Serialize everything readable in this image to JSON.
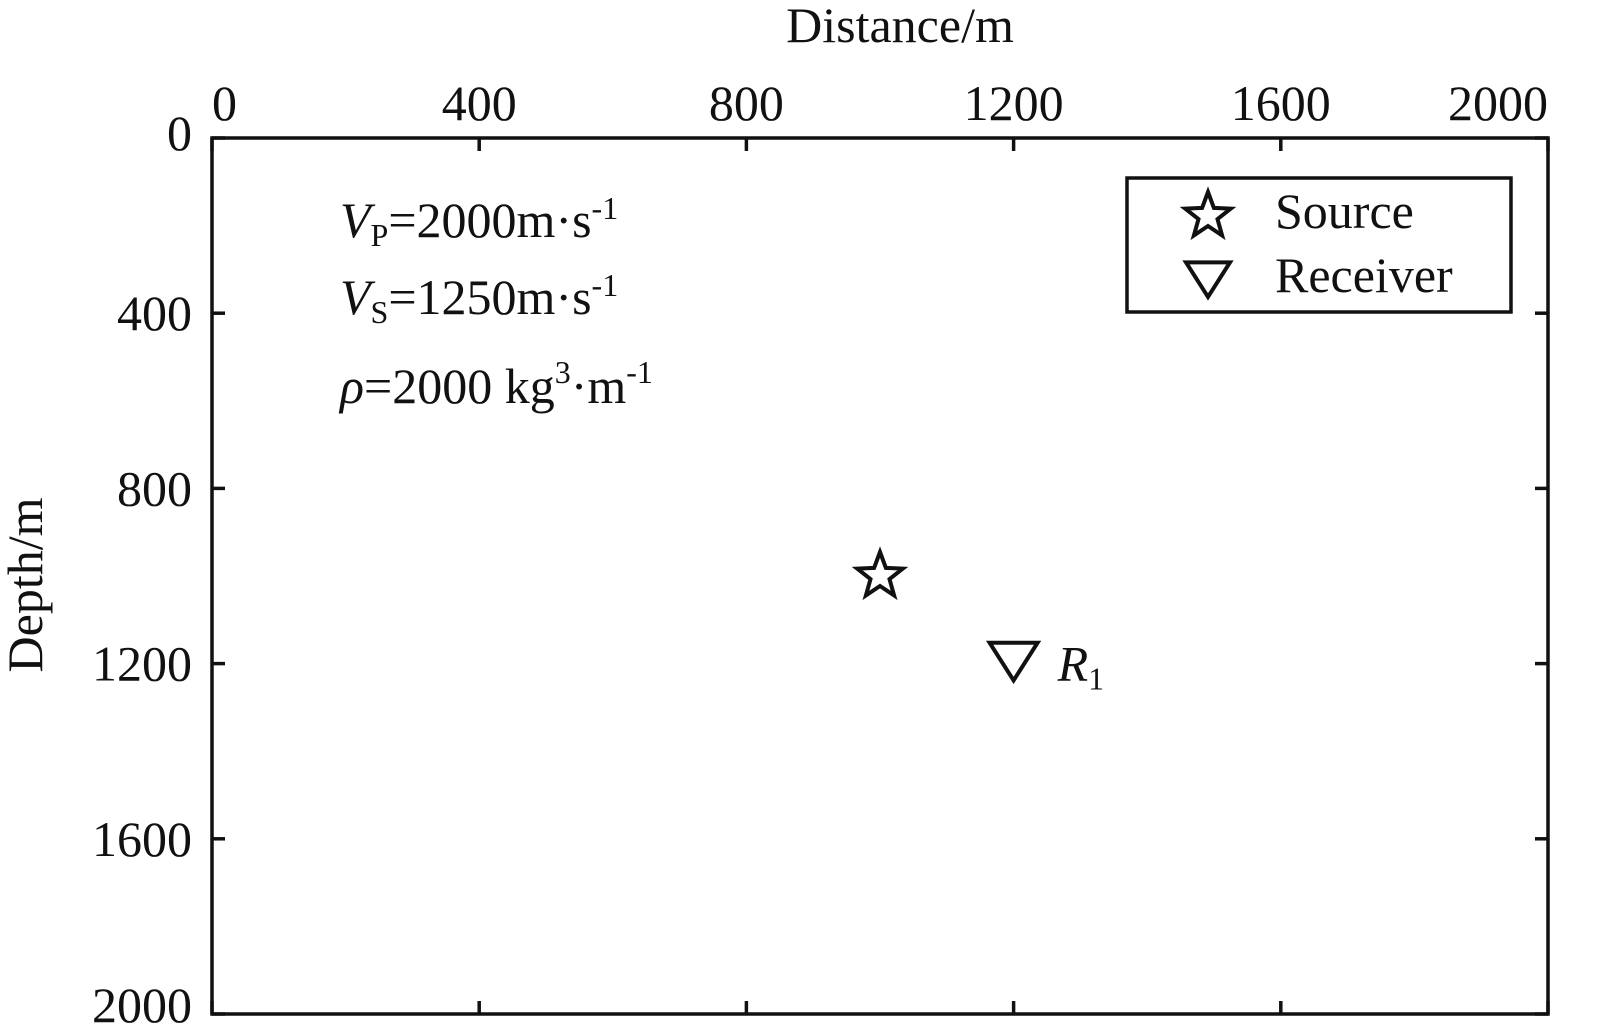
{
  "chart_data": {
    "type": "scatter",
    "xlabel": "Distance/m",
    "ylabel": "Depth/m",
    "xlim": [
      0,
      2000
    ],
    "ylim": [
      0,
      2000
    ],
    "y_inverted": true,
    "x_axis_position": "top",
    "x_ticks": [
      "0",
      "400",
      "800",
      "1200",
      "1600",
      "2000"
    ],
    "y_ticks": [
      "0",
      "400",
      "800",
      "1200",
      "1600",
      "2000"
    ],
    "grid": false,
    "legend_position": "top-right",
    "legend": [
      {
        "label": "Source",
        "marker": "star-icon"
      },
      {
        "label": "Receiver",
        "marker": "triangle-down-icon"
      }
    ],
    "points": [
      {
        "series": "Source",
        "x": 1000,
        "y": 1000,
        "label": ""
      },
      {
        "series": "Receiver",
        "x": 1200,
        "y": 1200,
        "label": "R",
        "label_sub": "1"
      }
    ],
    "annotations": {
      "vp": {
        "symbol": "V",
        "sub": "P",
        "text": "=2000m·s",
        "sup": "-1"
      },
      "vs": {
        "symbol": "V",
        "sub": "S",
        "text": "=1250m·s",
        "sup": "-1"
      },
      "rho": {
        "symbol": "ρ",
        "text": "=2000 kg",
        "sup": "3",
        "text2": "·m",
        "sup2": "-1"
      }
    }
  }
}
